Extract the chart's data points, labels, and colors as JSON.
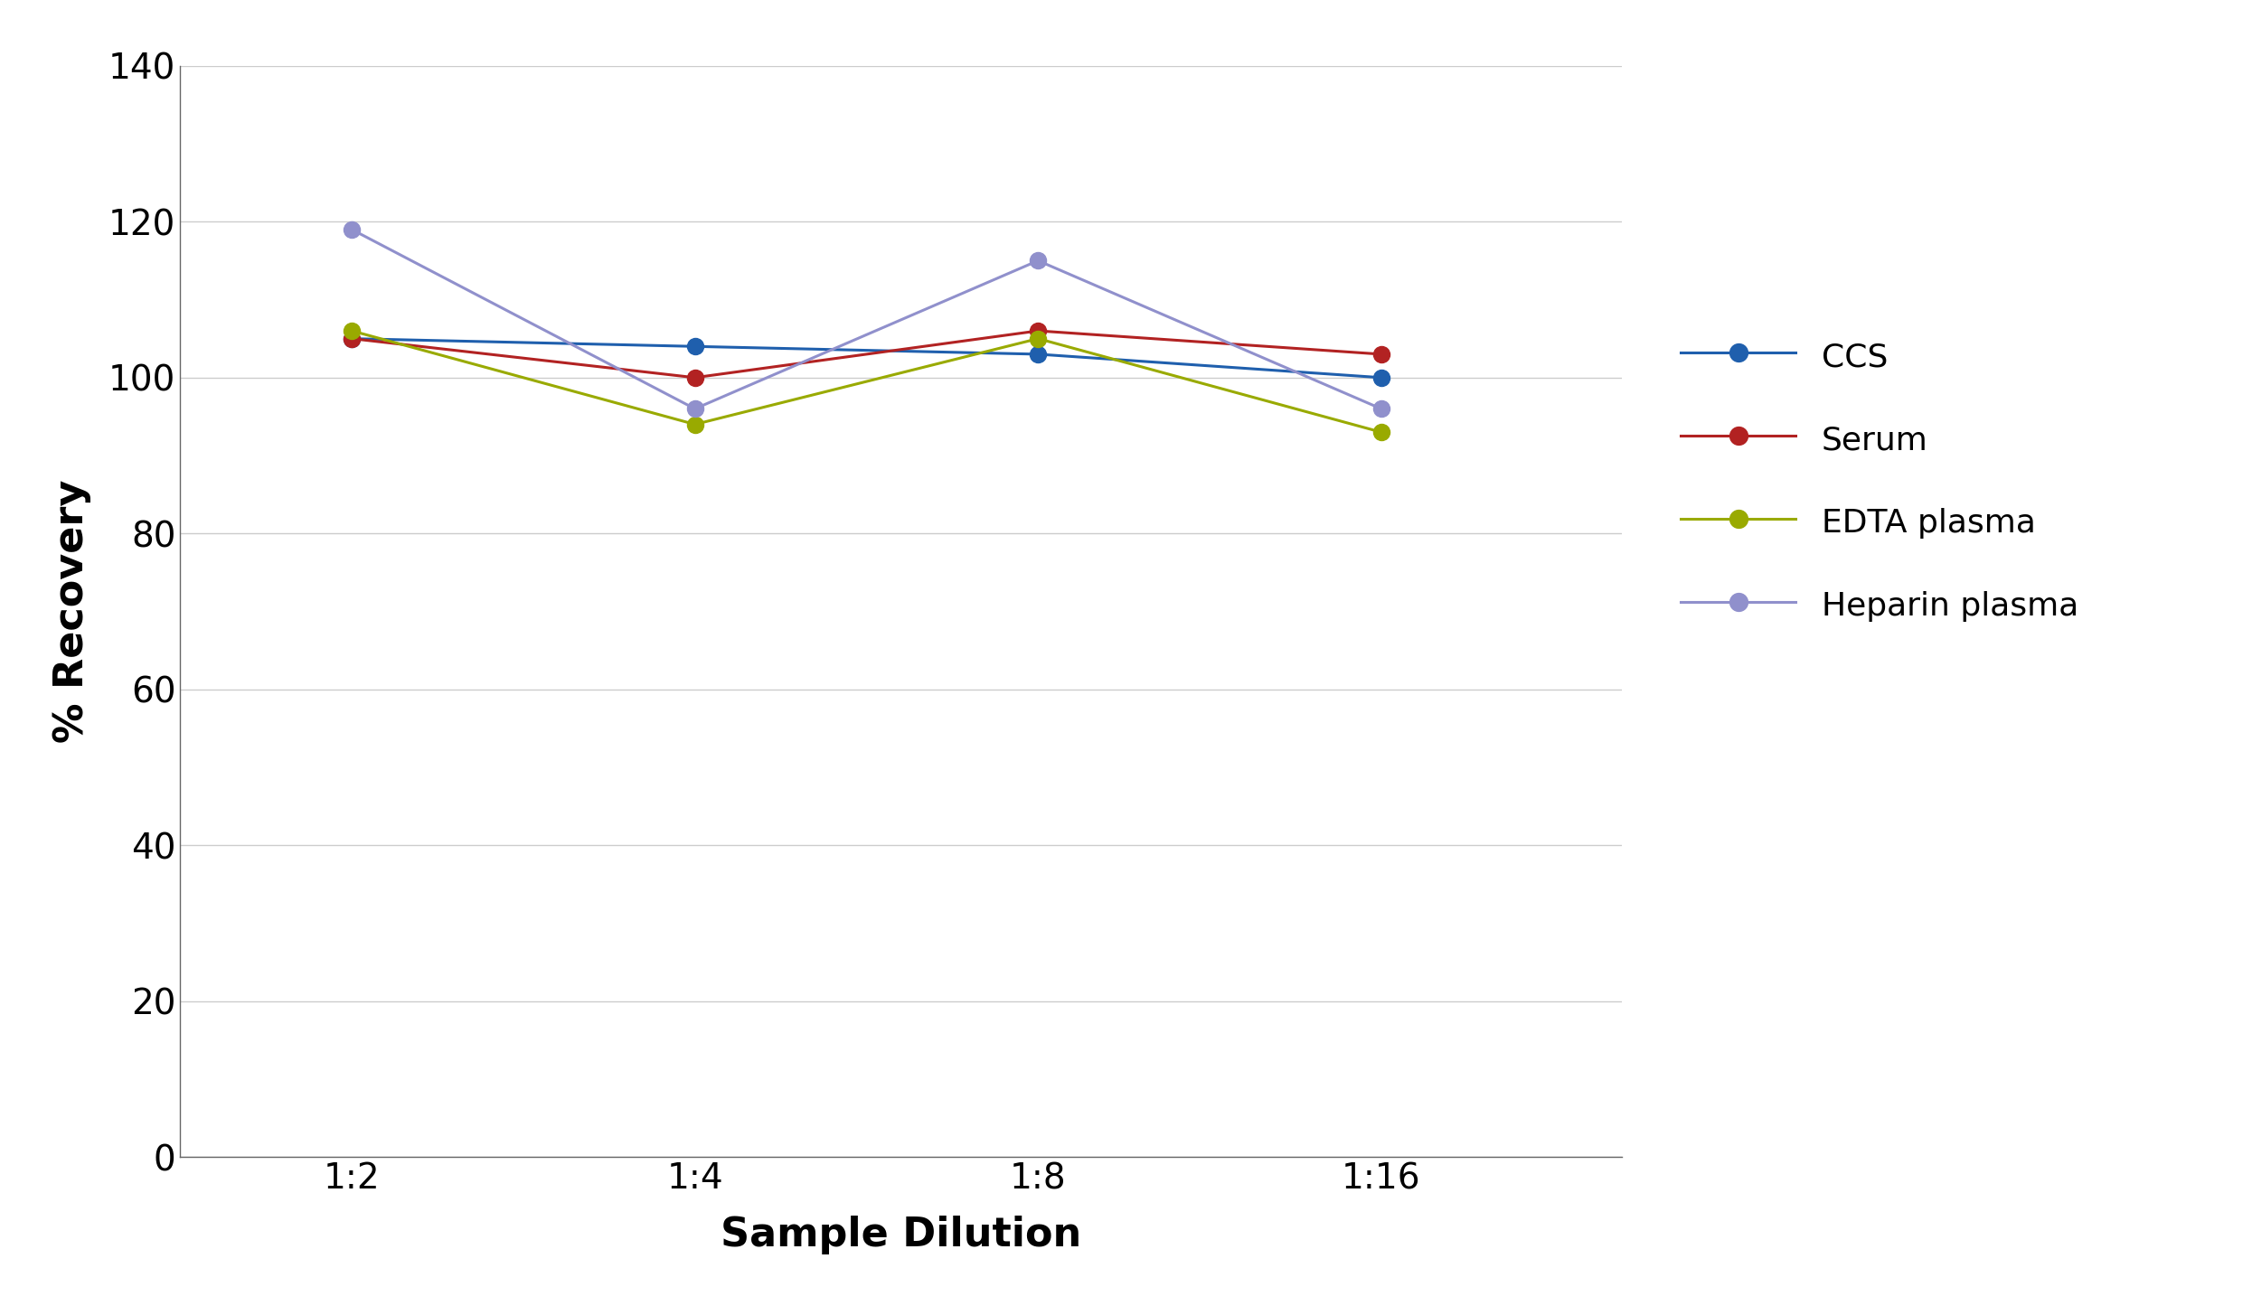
{
  "x_labels": [
    "1:2",
    "1:4",
    "1:8",
    "1:16"
  ],
  "x_positions": [
    0,
    1,
    2,
    3
  ],
  "series": {
    "CCS": {
      "values": [
        105,
        104,
        103,
        100
      ],
      "color": "#1F5FAD",
      "marker": "o"
    },
    "Serum": {
      "values": [
        105,
        100,
        106,
        103
      ],
      "color": "#B22222",
      "marker": "o"
    },
    "EDTA plasma": {
      "values": [
        106,
        94,
        105,
        93
      ],
      "color": "#99AA00",
      "marker": "o"
    },
    "Heparin plasma": {
      "values": [
        119,
        96,
        115,
        96
      ],
      "color": "#9090CC",
      "marker": "o"
    }
  },
  "ylabel": "% Recovery",
  "xlabel": "Sample Dilution",
  "ylim": [
    0,
    140
  ],
  "yticks": [
    0,
    20,
    40,
    60,
    80,
    100,
    120,
    140
  ],
  "grid_color": "#CCCCCC",
  "background_color": "#FFFFFF",
  "legend_order": [
    "CCS",
    "Serum",
    "EDTA plasma",
    "Heparin plasma"
  ],
  "figsize": [
    24.91,
    14.55
  ],
  "dpi": 100
}
